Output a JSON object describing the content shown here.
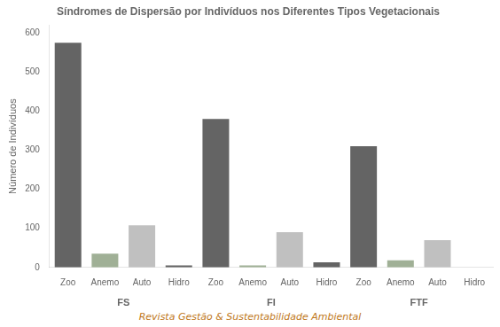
{
  "chart_data": {
    "type": "bar",
    "title": "Síndromes de Dispersão por Indivíduos nos Diferentes Tipos Vegetacionais",
    "ylabel": "Número de Indivíduos",
    "categories": [
      "Zoo",
      "Anemo",
      "Auto",
      "Hidro",
      "Zoo",
      "Anemo",
      "Auto",
      "Hidro",
      "Zoo",
      "Anemo",
      "Auto",
      "Hidro"
    ],
    "groups": [
      "FS",
      "FI",
      "FTF"
    ],
    "values": [
      575,
      35,
      108,
      5,
      380,
      5,
      90,
      13,
      310,
      18,
      70,
      0
    ],
    "colors": [
      "#646464",
      "#a0b096",
      "#c0c0c0",
      "#646464",
      "#646464",
      "#a0b096",
      "#c0c0c0",
      "#646464",
      "#646464",
      "#a0b096",
      "#c0c0c0",
      "#646464"
    ],
    "ylim": [
      0,
      620
    ],
    "yticks": [
      0,
      100,
      200,
      300,
      400,
      500,
      600
    ],
    "grid": false,
    "annotations": [
      {
        "text": "Revista Gestão & Sustentabilidade Ambiental",
        "color": "#c07820"
      }
    ]
  }
}
